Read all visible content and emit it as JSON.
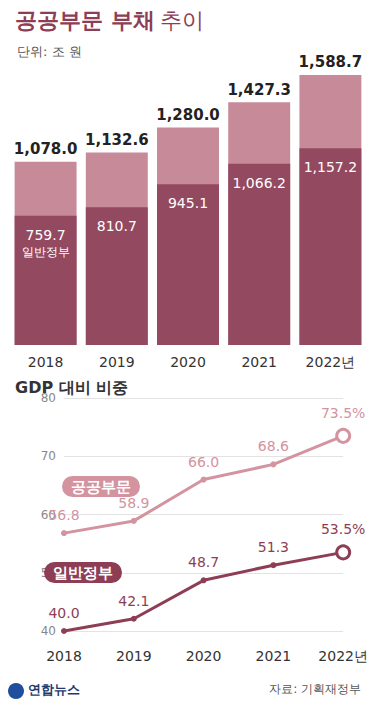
{
  "chart_data": [
    {
      "type": "bar",
      "title": "공공부문 부채 추이",
      "subtitle": "단위: 조 원",
      "categories": [
        "2018",
        "2019",
        "2020",
        "2021",
        "2022년"
      ],
      "series": [
        {
          "color": "#c68a99",
          "values": [
            1078.0,
            1132.6,
            1280.0,
            1427.3,
            1588.7
          ],
          "value_labels": [
            "1,078.0",
            "1,132.6",
            "1,280.0",
            "1,427.3",
            "1,588.7"
          ]
        },
        {
          "name": "일반정부",
          "color": "#934a60",
          "values": [
            759.7,
            810.7,
            945.1,
            1066.2,
            1157.2
          ],
          "value_labels": [
            "759.7",
            "810.7",
            "945.1",
            "1,066.2",
            "1,157.2"
          ]
        }
      ],
      "ylim": [
        0,
        1800
      ],
      "stacked": false,
      "data_labels": true,
      "tick_labels": "x",
      "grid": false
    },
    {
      "type": "line",
      "title": "GDP 대비 비중",
      "categories": [
        "2018",
        "2019",
        "2020",
        "2021",
        "2022년"
      ],
      "series": [
        {
          "name": "공공부문",
          "color": "#d3939f",
          "values": [
            56.8,
            58.9,
            66.0,
            68.6,
            73.5
          ],
          "value_labels": [
            "56.8",
            "58.9",
            "66.0",
            "68.6",
            "73.5%"
          ]
        },
        {
          "name": "일반정부",
          "color": "#8d3e55",
          "values": [
            40.0,
            42.1,
            48.7,
            51.3,
            53.5
          ],
          "value_labels": [
            "40.0",
            "42.1",
            "48.7",
            "51.3",
            "53.5%"
          ]
        }
      ],
      "ylim": [
        40,
        80
      ],
      "yticks": [
        40,
        50,
        60,
        70,
        80
      ],
      "grid": true,
      "data_labels": true,
      "marker": "circle",
      "source": "자료: 기획재정부",
      "credit": "연합뉴스"
    }
  ]
}
